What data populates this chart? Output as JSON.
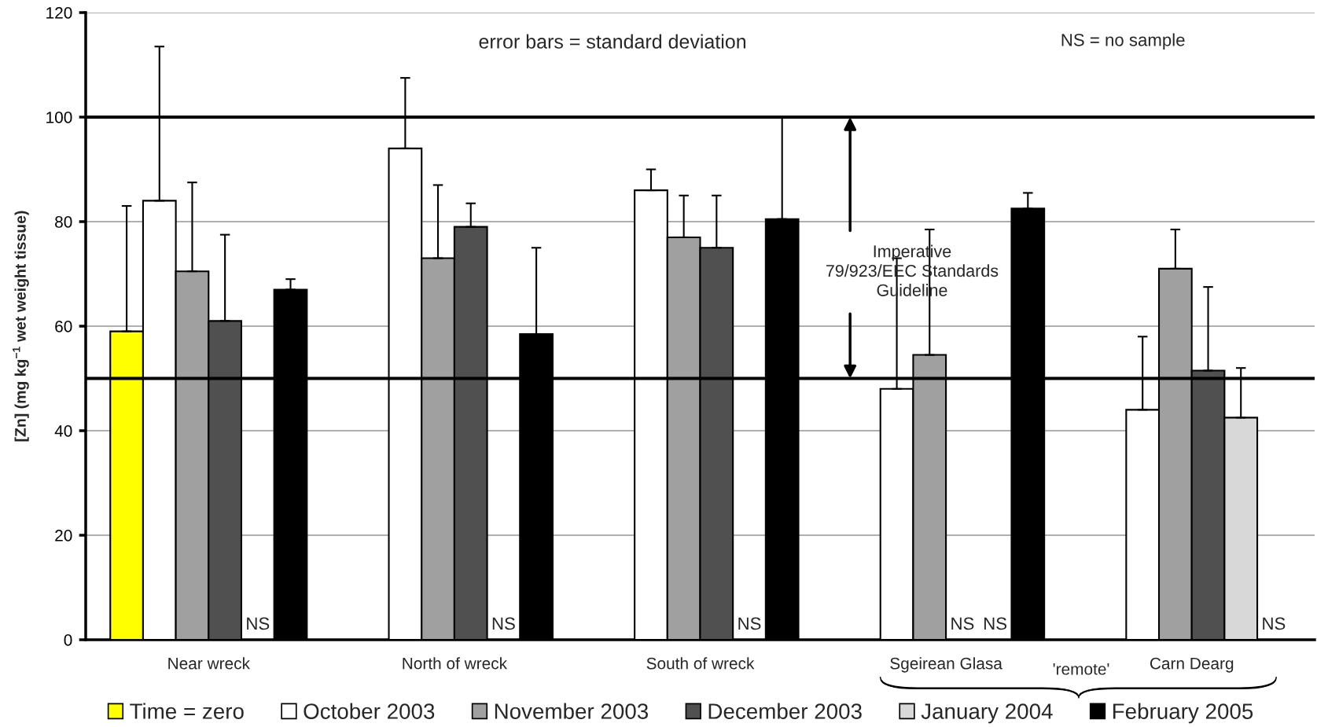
{
  "chart_data": {
    "type": "bar",
    "ylabel": "[Zn] (mg kg$^{−1}$ wet weight tissue)",
    "categories": [
      "Near wreck",
      "North of wreck",
      "South of wreck",
      "Sgeirean Glasa",
      "Carn Dearg"
    ],
    "series": [
      {
        "name": "Time = zero",
        "color": "#ffff00",
        "values": [
          59,
          null,
          null,
          null,
          null
        ],
        "errors": [
          [
            59,
            83
          ],
          null,
          null,
          null,
          null
        ]
      },
      {
        "name": "October 2003",
        "color": "#ffffff",
        "values": [
          84,
          94,
          86,
          48,
          44
        ],
        "errors": [
          [
            84,
            113.5
          ],
          [
            94,
            107.5
          ],
          [
            86,
            90
          ],
          [
            48,
            73
          ],
          [
            44,
            58
          ]
        ]
      },
      {
        "name": "November 2003",
        "color": "#a0a0a0",
        "values": [
          70.5,
          73,
          77,
          54.5,
          71
        ],
        "errors": [
          [
            70.5,
            87.5
          ],
          [
            73,
            87
          ],
          [
            77,
            85
          ],
          [
            54.5,
            78.5
          ],
          [
            71,
            78.5
          ]
        ]
      },
      {
        "name": "December 2003",
        "color": "#505050",
        "values": [
          61,
          79,
          75,
          null,
          51.5
        ],
        "errors": [
          [
            61,
            77.5
          ],
          [
            79,
            83.5
          ],
          [
            75,
            85
          ],
          null,
          [
            51.5,
            67.5
          ]
        ],
        "value_labels": [
          null,
          null,
          null,
          "NS",
          null
        ]
      },
      {
        "name": "January 2004",
        "color": "#d8d8d8",
        "values": [
          null,
          null,
          null,
          null,
          42.5
        ],
        "errors": [
          null,
          null,
          null,
          null,
          [
            42.5,
            52
          ]
        ],
        "value_labels": [
          "NS",
          "NS",
          "NS",
          "NS",
          null
        ]
      },
      {
        "name": "February 2005",
        "color": "#000000",
        "values": [
          67,
          58.5,
          80.5,
          82.5,
          null
        ],
        "errors": [
          [
            67,
            69
          ],
          [
            58.5,
            75
          ],
          [
            80.5,
            100
          ],
          [
            82.5,
            85.5
          ],
          null
        ],
        "value_labels": [
          null,
          null,
          null,
          null,
          "NS"
        ]
      }
    ],
    "ylim": [
      0,
      120
    ],
    "yticks": [
      0,
      20,
      40,
      60,
      80,
      100,
      120
    ],
    "grid": "y",
    "legend": "bottom",
    "ref_lines": [
      {
        "axis": "y",
        "value": 100,
        "color": "#000000"
      },
      {
        "axis": "y",
        "value": 50,
        "color": "#000000"
      }
    ],
    "annotations": [
      "error bars = standard deviation",
      "NS = no sample",
      "Imperative\n79/923/EEC Standards\nGuideline",
      "'remote'"
    ]
  }
}
